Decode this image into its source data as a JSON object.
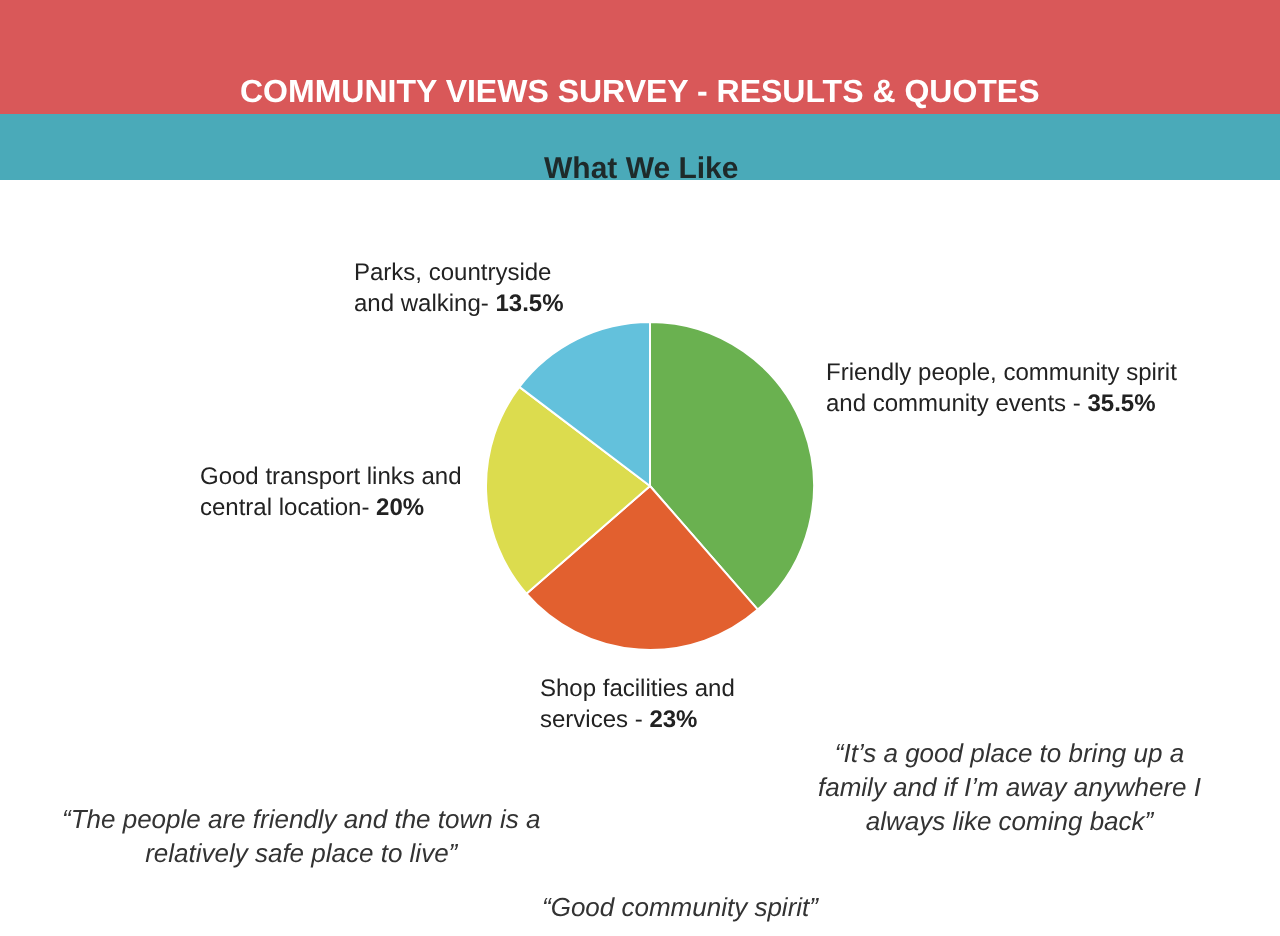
{
  "chart_data": {
    "type": "pie",
    "title": "COMMUNITY VIEWS SURVEY - RESULTS & QUOTES",
    "subtitle": "What We Like",
    "categories": [
      "Friendly people, community spirit and community events -",
      "Shop facilities and services -",
      "Good transport links and central location-",
      "Parks, countryside and walking-"
    ],
    "values": [
      35.5,
      23,
      20,
      13.5
    ],
    "value_labels": [
      "35.5%",
      "23%",
      "20%",
      "13.5%"
    ],
    "colors": [
      "#6ab150",
      "#e2602f",
      "#dcdc4e",
      "#63c1dc"
    ],
    "annotations": [
      "“It’s a good place to bring up a family and if I’m away anywhere I always like coming back”",
      "“The people are friendly and the town is a relatively safe place to live”",
      "“Good community spirit”"
    ]
  }
}
